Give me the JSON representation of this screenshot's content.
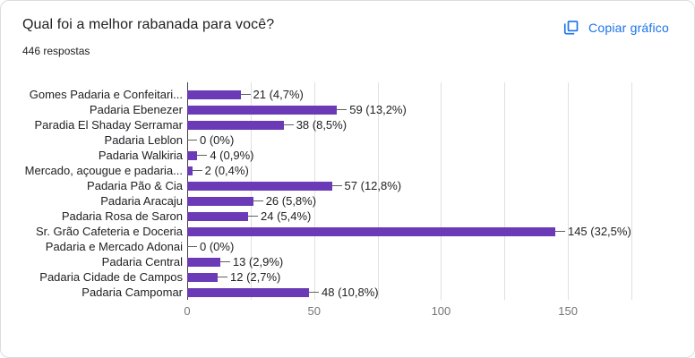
{
  "card": {
    "title": "Qual foi a melhor rabanada para você?",
    "subtitle": "446 respostas",
    "copy_button_label": "Copiar gráfico"
  },
  "colors": {
    "bar": "#6a3ab7",
    "accent_blue": "#1a73e8",
    "gridline": "#e0e0e0",
    "axis_line": "#424242",
    "text_primary": "#202124",
    "tick_label": "#757575",
    "leader_line": "#616161",
    "card_border": "#dadce0"
  },
  "chart_data": {
    "type": "bar",
    "orientation": "horizontal",
    "title": "Qual foi a melhor rabanada para você?",
    "subtitle": "446 respostas",
    "categories": [
      "Gomes Padaria e Confeitari...",
      "Padaria Ebenezer",
      "Paradia El Shaday Serramar",
      "Padaria Leblon",
      "Padaria Walkiria",
      "Mercado, açougue e padaria...",
      "Padaria Pão & Cia",
      "Padaria Aracaju",
      "Padaria Rosa de Saron",
      "Sr. Grão Cafeteria e Doceria",
      "Padaria e Mercado Adonai",
      "Padaria Central",
      "Padaria Cidade de Campos",
      "Padaria Campomar"
    ],
    "values": [
      21,
      59,
      38,
      0,
      4,
      2,
      57,
      26,
      24,
      145,
      0,
      13,
      12,
      48
    ],
    "value_labels": [
      "21 (4,7%)",
      "59 (13,2%)",
      "38 (8,5%)",
      "0 (0%)",
      "4 (0,9%)",
      "2 (0,4%)",
      "57 (12,8%)",
      "26 (5,8%)",
      "24 (5,4%)",
      "145 (32,5%)",
      "0 (0%)",
      "13 (2,9%)",
      "12 (2,7%)",
      "48 (10,8%)"
    ],
    "xlim": [
      0,
      175
    ],
    "x_ticks": [
      0,
      50,
      100,
      150
    ],
    "grid_interval": 25,
    "grid": true,
    "legend": "none"
  }
}
